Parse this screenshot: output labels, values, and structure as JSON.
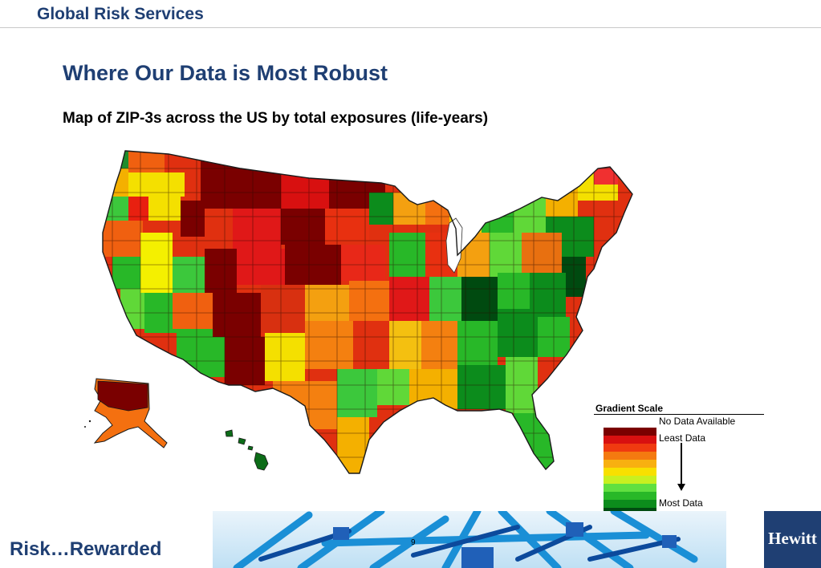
{
  "header": {
    "title": "Global Risk Services"
  },
  "slide": {
    "title": "Where Our Data is Most Robust",
    "subtitle": "Map of ZIP-3s across the US by total exposures (life-years)"
  },
  "legend": {
    "title": "Gradient Scale",
    "no_data_label": "No Data Available",
    "least_label": "Least Data",
    "most_label": "Most Data",
    "colors": [
      "#7a0000",
      "#d81010",
      "#f03a10",
      "#f47a10",
      "#f8b010",
      "#f8e000",
      "#c8f020",
      "#60e040",
      "#28b828",
      "#0c8c1c",
      "#004a10"
    ]
  },
  "footer": {
    "tagline": "Risk…Rewarded",
    "page_number": "9",
    "logo_text": "Hewitt"
  },
  "colors": {
    "brand_navy": "#1f3f73",
    "footer_sky": "#bfe0f4",
    "structure_blue": "#1a8fd6"
  }
}
